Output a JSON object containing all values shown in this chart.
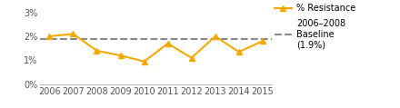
{
  "years": [
    2006,
    2007,
    2008,
    2009,
    2010,
    2011,
    2012,
    2013,
    2014,
    2015
  ],
  "resistance": [
    2.0,
    2.1,
    1.4,
    1.2,
    0.95,
    1.7,
    1.1,
    2.0,
    1.35,
    1.8
  ],
  "baseline": 1.9,
  "line_color": "#F5A800",
  "baseline_color": "#888888",
  "marker": "^",
  "marker_size": 4,
  "line_width": 1.5,
  "baseline_linewidth": 1.5,
  "ytick_labels": [
    "0%",
    "1%",
    "2%",
    "3%"
  ],
  "xlim": [
    2005.6,
    2015.4
  ],
  "ylim_max": 3.2,
  "legend_resistance": "% Resistance",
  "legend_baseline": "2006–2008\nBaseline\n(1.9%)",
  "background_color": "#ffffff",
  "font_size": 7.0,
  "tick_color": "#555555"
}
